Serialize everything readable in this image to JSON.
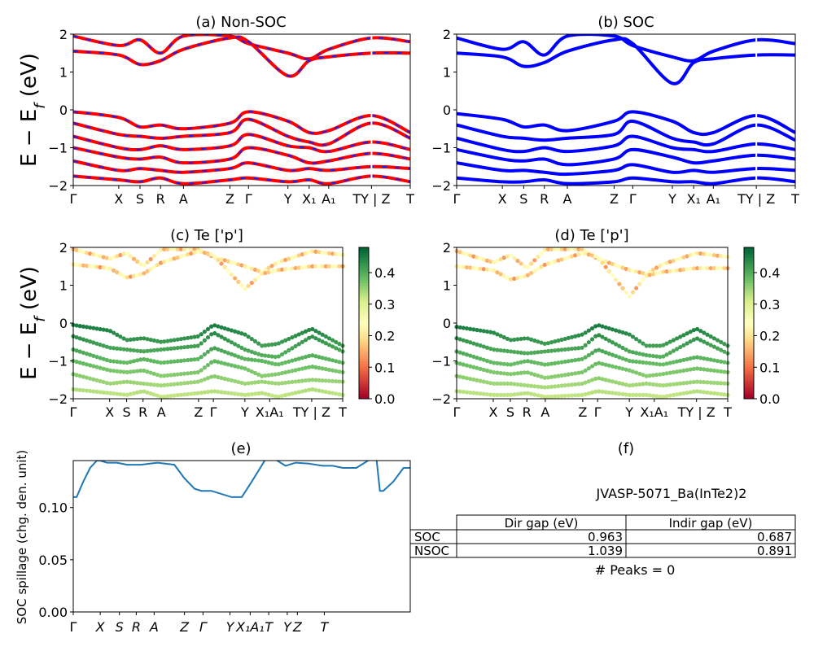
{
  "figure_id": "JVASP-5071_Ba(InTe2)2",
  "k_labels_a": [
    "Γ",
    "X",
    "S",
    "R",
    "A",
    "Z",
    "Γ",
    "Y",
    "X₁",
    "A₁",
    "TY | Z",
    "T"
  ],
  "colorbar_ticks": [
    "0.0",
    "0.1",
    "0.2",
    "0.3",
    "0.4"
  ],
  "colors": {
    "nonsoc_red": "#ff0000",
    "nonsoc_blue": "#1f1fe6",
    "soc_blue": "#0000ff",
    "spill_line": "#1f77b4"
  },
  "chart_data": [
    {
      "type": "line",
      "panel": "a",
      "title": "(a) Non-SOC",
      "ylabel": "E − E_f (eV)",
      "ylim": [
        -2,
        2
      ],
      "yticks": [
        "2",
        "1",
        "0",
        "−1",
        "−2"
      ],
      "xticks": [
        "Γ",
        "X",
        "S",
        "R",
        "A",
        "Z",
        "Γ",
        "Y",
        "X₁",
        "A₁",
        "TY | Z",
        "T"
      ],
      "series": [
        {
          "values": [
            -0.05,
            -0.2,
            -0.45,
            -0.4,
            -0.5,
            -0.35,
            -0.05,
            -0.3,
            -0.6,
            -0.55,
            -0.15,
            -0.6
          ]
        },
        {
          "values": [
            -0.35,
            -0.65,
            -0.7,
            -0.75,
            -0.7,
            -0.6,
            -0.25,
            -0.7,
            -0.85,
            -0.9,
            -0.35,
            -0.75
          ]
        },
        {
          "values": [
            -0.7,
            -1.0,
            -1.05,
            -0.95,
            -1.05,
            -0.95,
            -0.65,
            -0.95,
            -1.0,
            -1.1,
            -0.85,
            -1.05
          ]
        },
        {
          "values": [
            -1.0,
            -1.25,
            -1.3,
            -1.25,
            -1.4,
            -1.3,
            -1.0,
            -1.2,
            -1.4,
            -1.35,
            -1.15,
            -1.3
          ]
        },
        {
          "values": [
            -1.35,
            -1.6,
            -1.55,
            -1.6,
            -1.65,
            -1.55,
            -1.4,
            -1.6,
            -1.55,
            -1.6,
            -1.5,
            -1.55
          ]
        },
        {
          "values": [
            -1.75,
            -1.85,
            -1.9,
            -1.8,
            -1.95,
            -1.85,
            -1.8,
            -1.9,
            -1.85,
            -1.95,
            -1.75,
            -1.9
          ]
        },
        {
          "values": [
            1.95,
            1.7,
            1.85,
            1.5,
            1.95,
            1.95,
            1.75,
            1.5,
            1.35,
            1.6,
            1.9,
            1.8
          ]
        },
        {
          "values": [
            1.55,
            1.45,
            1.2,
            1.3,
            1.6,
            1.9,
            1.8,
            0.9,
            1.3,
            1.4,
            1.5,
            1.5
          ]
        }
      ]
    },
    {
      "type": "line",
      "panel": "b",
      "title": "(b) SOC",
      "ylim": [
        -2,
        2
      ],
      "yticks": [
        "2",
        "1",
        "0",
        "−1",
        "−2"
      ],
      "xticks": [
        "Γ",
        "X",
        "S",
        "R",
        "A",
        "Z",
        "Γ",
        "Y",
        "X₁",
        "A₁",
        "TY | Z",
        "T"
      ],
      "series": [
        {
          "values": [
            -0.1,
            -0.25,
            -0.45,
            -0.4,
            -0.55,
            -0.3,
            -0.05,
            -0.3,
            -0.6,
            -0.6,
            -0.15,
            -0.6
          ]
        },
        {
          "values": [
            -0.4,
            -0.7,
            -0.75,
            -0.8,
            -0.75,
            -0.65,
            -0.3,
            -0.75,
            -0.85,
            -0.9,
            -0.4,
            -0.8
          ]
        },
        {
          "values": [
            -0.75,
            -1.05,
            -1.1,
            -1.0,
            -1.1,
            -0.95,
            -0.7,
            -1.0,
            -1.05,
            -1.1,
            -0.9,
            -1.05
          ]
        },
        {
          "values": [
            -1.05,
            -1.3,
            -1.35,
            -1.3,
            -1.45,
            -1.3,
            -1.05,
            -1.25,
            -1.4,
            -1.35,
            -1.2,
            -1.3
          ]
        },
        {
          "values": [
            -1.4,
            -1.6,
            -1.6,
            -1.65,
            -1.7,
            -1.6,
            -1.45,
            -1.65,
            -1.6,
            -1.65,
            -1.55,
            -1.6
          ]
        },
        {
          "values": [
            -1.8,
            -1.9,
            -1.9,
            -1.85,
            -1.95,
            -1.9,
            -1.8,
            -1.9,
            -1.9,
            -1.95,
            -1.8,
            -1.9
          ]
        },
        {
          "values": [
            1.9,
            1.6,
            1.8,
            1.45,
            1.95,
            1.95,
            1.7,
            1.4,
            1.3,
            1.55,
            1.85,
            1.75
          ]
        },
        {
          "values": [
            1.5,
            1.4,
            1.15,
            1.25,
            1.55,
            1.85,
            1.75,
            0.7,
            1.25,
            1.35,
            1.45,
            1.45
          ]
        }
      ]
    },
    {
      "type": "scatter",
      "panel": "c",
      "title": "(c)  Te ['p']",
      "ylabel": "E − E_f (eV)",
      "ylim": [
        -2,
        2
      ],
      "yticks": [
        "2",
        "1",
        "0",
        "−1",
        "−2"
      ],
      "xticks": [
        "Γ",
        "X",
        "S",
        "R",
        "A",
        "Z",
        "Γ",
        "Y",
        "X₁A₁",
        "TY | Z",
        "T"
      ],
      "colorbar": {
        "range": [
          0.0,
          0.48
        ],
        "ticks": [
          "0.0",
          "0.1",
          "0.2",
          "0.3",
          "0.4"
        ]
      }
    },
    {
      "type": "scatter",
      "panel": "d",
      "title": "(d) Te ['p']",
      "ylim": [
        -2,
        2
      ],
      "yticks": [
        "2",
        "1",
        "0",
        "−1",
        "−2"
      ],
      "xticks": [
        "Γ",
        "X",
        "S",
        "R",
        "A",
        "Z",
        "Γ",
        "Y",
        "X₁A₁",
        "TY | Z",
        "T"
      ],
      "colorbar": {
        "range": [
          0.0,
          0.48
        ],
        "ticks": [
          "0.0",
          "0.1",
          "0.2",
          "0.3",
          "0.4"
        ]
      }
    },
    {
      "type": "line",
      "panel": "e",
      "title": "(e)",
      "ylabel": "SOC spillage (chg. den. unit)",
      "ylim": [
        0,
        0.145
      ],
      "yticks": [
        "0.00",
        "0.05",
        "0.10"
      ],
      "xticks": [
        "Γ",
        "X",
        "S",
        "R",
        "A",
        "Z",
        "Γ",
        "Y",
        "X₁A₁",
        "T",
        "Y",
        "Z",
        "T"
      ],
      "x": [
        0,
        0.01,
        0.03,
        0.05,
        0.07,
        0.08,
        0.1,
        0.13,
        0.16,
        0.2,
        0.25,
        0.3,
        0.33,
        0.36,
        0.38,
        0.41,
        0.47,
        0.5,
        0.53,
        0.57,
        0.6,
        0.63,
        0.66,
        0.7,
        0.74,
        0.77,
        0.8,
        0.84,
        0.88,
        0.9,
        0.91,
        0.92,
        0.95,
        0.98,
        1.0
      ],
      "y": [
        0.11,
        0.11,
        0.125,
        0.138,
        0.145,
        0.145,
        0.143,
        0.143,
        0.141,
        0.141,
        0.143,
        0.141,
        0.128,
        0.118,
        0.116,
        0.116,
        0.11,
        0.11,
        0.125,
        0.146,
        0.146,
        0.14,
        0.143,
        0.142,
        0.14,
        0.14,
        0.138,
        0.138,
        0.146,
        0.146,
        0.116,
        0.116,
        0.125,
        0.138,
        0.138
      ]
    },
    {
      "type": "table",
      "panel": "f",
      "title": "(f)",
      "caption": "JVASP-5071_Ba(InTe2)2",
      "columns": [
        "",
        "Dir gap (eV)",
        "Indir gap (eV)"
      ],
      "rows": [
        [
          "SOC",
          "0.963",
          "0.687"
        ],
        [
          "NSOC",
          "1.039",
          "0.891"
        ]
      ],
      "footer": "# Peaks = 0"
    }
  ]
}
